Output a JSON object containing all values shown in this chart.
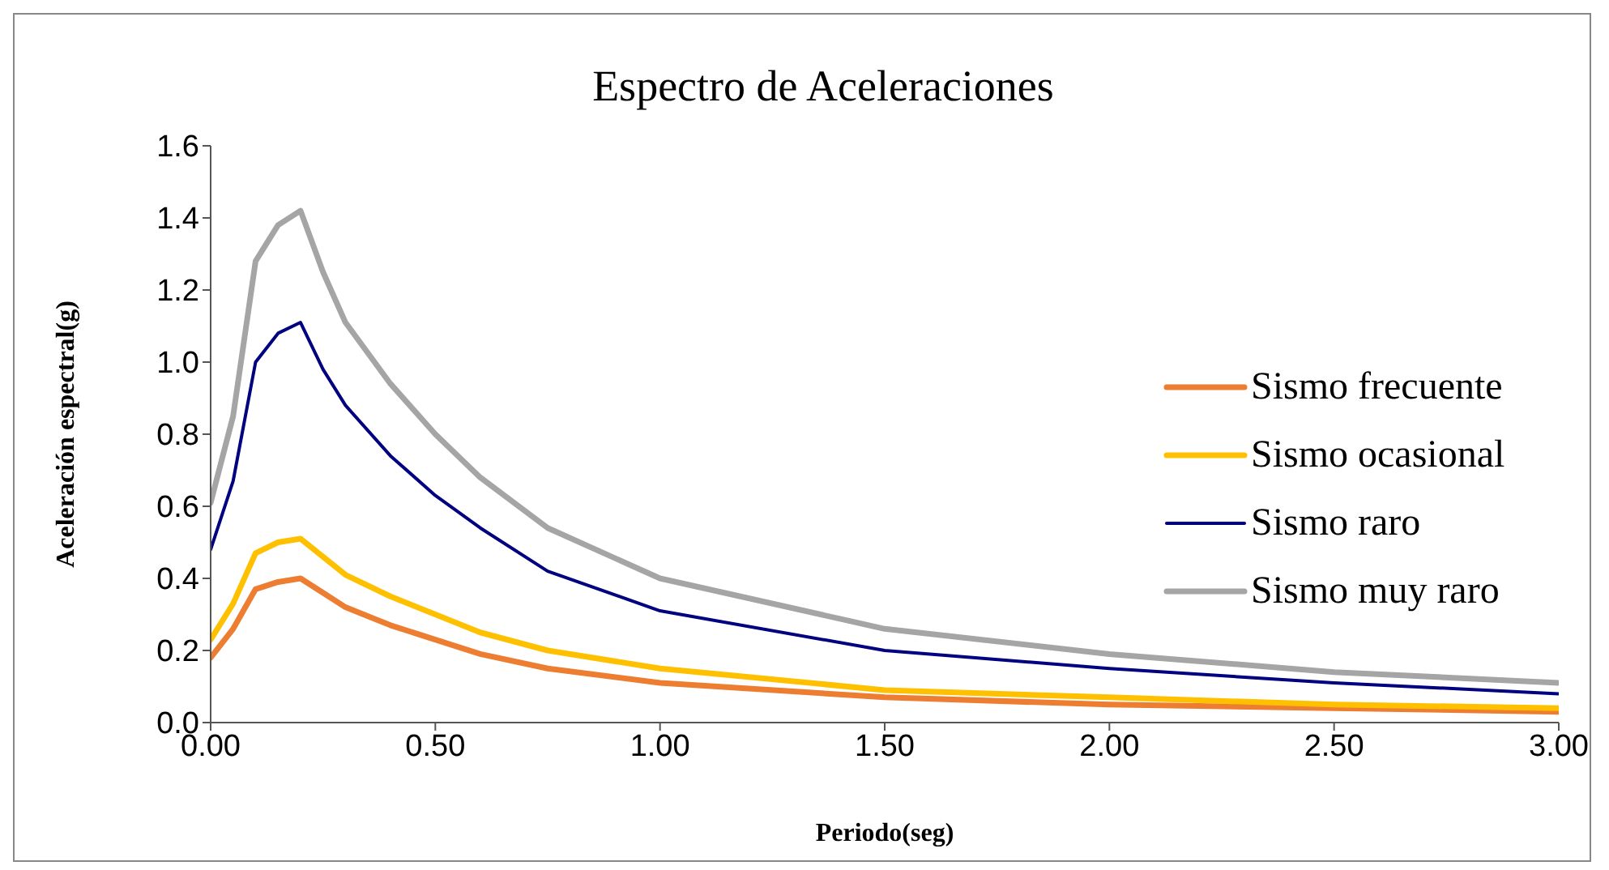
{
  "chart_data": {
    "type": "line",
    "title": "Espectro de Aceleraciones",
    "xlabel": "Periodo(seg)",
    "ylabel": "Aceleración espectral(g)",
    "x": [
      0,
      0.05,
      0.1,
      0.15,
      0.2,
      0.25,
      0.3,
      0.4,
      0.5,
      0.6,
      0.75,
      1.0,
      1.5,
      2.0,
      2.5,
      3.0
    ],
    "series": [
      {
        "name": "Sismo frecuente",
        "color": "#ed7d31",
        "values": [
          0.18,
          0.26,
          0.37,
          0.39,
          0.4,
          0.36,
          0.32,
          0.27,
          0.23,
          0.19,
          0.15,
          0.11,
          0.07,
          0.05,
          0.04,
          0.03
        ]
      },
      {
        "name": "Sismo ocasional",
        "color": "#ffc000",
        "values": [
          0.23,
          0.33,
          0.47,
          0.5,
          0.51,
          0.46,
          0.41,
          0.35,
          0.3,
          0.25,
          0.2,
          0.15,
          0.09,
          0.07,
          0.05,
          0.04
        ]
      },
      {
        "name": "Sismo raro",
        "color": "#000080",
        "values": [
          0.48,
          0.67,
          1.0,
          1.08,
          1.11,
          0.98,
          0.88,
          0.74,
          0.63,
          0.54,
          0.42,
          0.31,
          0.2,
          0.15,
          0.11,
          0.08
        ]
      },
      {
        "name": "Sismo muy raro",
        "color": "#a5a5a5",
        "values": [
          0.61,
          0.85,
          1.28,
          1.38,
          1.42,
          1.25,
          1.11,
          0.94,
          0.8,
          0.68,
          0.54,
          0.4,
          0.26,
          0.19,
          0.14,
          0.11
        ]
      }
    ],
    "xlim": [
      0,
      3
    ],
    "xticks": [
      {
        "value": 0,
        "label": "0.00"
      },
      {
        "value": 0.5,
        "label": "0.50"
      },
      {
        "value": 1,
        "label": "1.00"
      },
      {
        "value": 1.5,
        "label": "1.50"
      },
      {
        "value": 2,
        "label": "2.00"
      },
      {
        "value": 2.5,
        "label": "2.50"
      },
      {
        "value": 3,
        "label": "3.00"
      }
    ],
    "ylim": [
      0,
      1.6
    ],
    "yticks": [
      {
        "value": 0,
        "label": "0.0"
      },
      {
        "value": 0.2,
        "label": "0.2"
      },
      {
        "value": 0.4,
        "label": "0.4"
      },
      {
        "value": 0.6,
        "label": "0.6"
      },
      {
        "value": 0.8,
        "label": "0.8"
      },
      {
        "value": 1.0,
        "label": "1.0"
      },
      {
        "value": 1.2,
        "label": "1.2"
      },
      {
        "value": 1.4,
        "label": "1.4"
      },
      {
        "value": 1.6,
        "label": "1.6"
      }
    ],
    "grid": false,
    "legend": "right",
    "marker": "none",
    "line_style": "solid"
  }
}
